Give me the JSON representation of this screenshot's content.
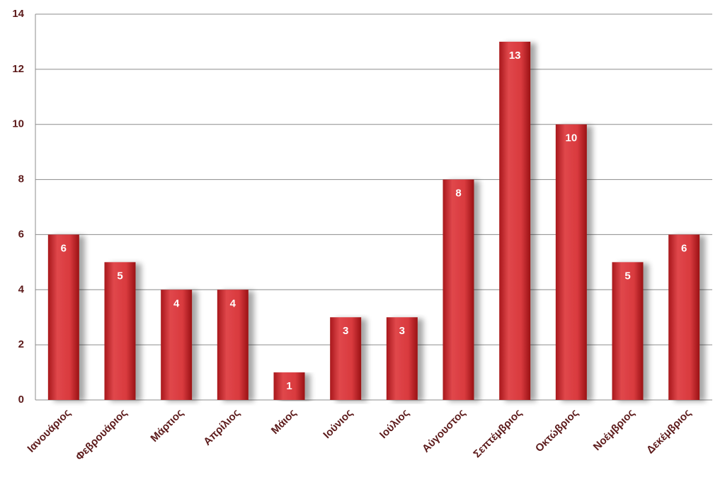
{
  "chart_data": {
    "type": "bar",
    "categories": [
      "Ιανουάριος",
      "Φεβρουάριος",
      "Μάρτιος",
      "Απρίλιος",
      "Μάιος",
      "Ιούνιος",
      "Ιούλιος",
      "Αύγουστος",
      "Σεπτέμβριος",
      "Οκτώβριος",
      "Νοέμβριος",
      "Δεκέμβριος"
    ],
    "values": [
      6,
      5,
      4,
      4,
      1,
      3,
      3,
      8,
      13,
      10,
      5,
      6
    ],
    "color": "#d93a3e",
    "ylim": [
      0,
      14
    ],
    "yticks": [
      0,
      2,
      4,
      6,
      8,
      10,
      12,
      14
    ],
    "grid": true,
    "data_labels": true
  }
}
